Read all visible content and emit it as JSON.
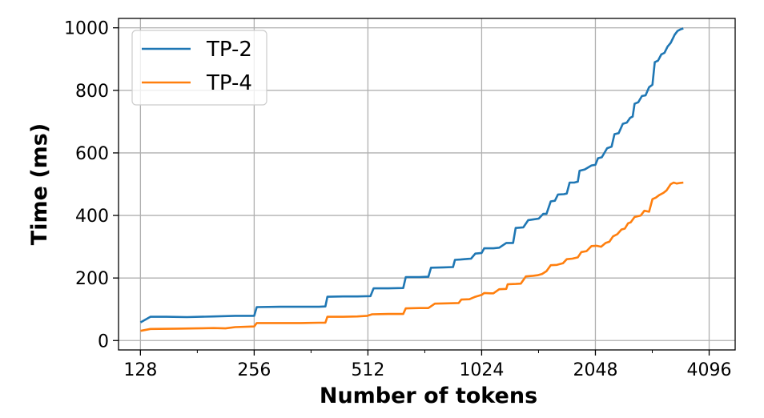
{
  "chart_data": {
    "type": "line",
    "title": "",
    "xlabel": "Number of tokens",
    "ylabel": "Time (ms)",
    "x_scale": "log2",
    "xlim": [
      112,
      4800
    ],
    "ylim": [
      -30,
      1030
    ],
    "x_ticks": [
      128,
      256,
      512,
      1024,
      2048,
      4096
    ],
    "x_tick_labels": [
      "128",
      "256",
      "512",
      "1024",
      "2048",
      "4096"
    ],
    "y_ticks": [
      0,
      200,
      400,
      600,
      800,
      1000
    ],
    "y_tick_labels": [
      "0",
      "200",
      "400",
      "600",
      "800",
      "1000"
    ],
    "grid": true,
    "legend_position": "top-left",
    "colors": {
      "TP-2": "#1f77b4",
      "TP-4": "#ff7f0e"
    },
    "series": [
      {
        "name": "TP-2",
        "color": "#1f77b4",
        "points": [
          [
            128,
            58
          ],
          [
            136,
            76
          ],
          [
            150,
            76
          ],
          [
            170,
            75
          ],
          [
            200,
            77
          ],
          [
            228,
            79
          ],
          [
            256,
            79
          ],
          [
            260,
            107
          ],
          [
            300,
            108
          ],
          [
            340,
            108
          ],
          [
            380,
            108
          ],
          [
            395,
            109
          ],
          [
            400,
            140
          ],
          [
            440,
            141
          ],
          [
            480,
            141
          ],
          [
            520,
            142
          ],
          [
            530,
            167
          ],
          [
            580,
            167
          ],
          [
            635,
            168
          ],
          [
            645,
            203
          ],
          [
            700,
            203
          ],
          [
            740,
            204
          ],
          [
            752,
            233
          ],
          [
            810,
            234
          ],
          [
            860,
            235
          ],
          [
            870,
            258
          ],
          [
            900,
            259
          ],
          [
            940,
            261
          ],
          [
            960,
            262
          ],
          [
            985,
            278
          ],
          [
            1024,
            280
          ],
          [
            1040,
            295
          ],
          [
            1100,
            295
          ],
          [
            1140,
            297
          ],
          [
            1190,
            312
          ],
          [
            1240,
            312
          ],
          [
            1260,
            360
          ],
          [
            1320,
            362
          ],
          [
            1360,
            385
          ],
          [
            1400,
            387
          ],
          [
            1450,
            390
          ],
          [
            1490,
            405
          ],
          [
            1520,
            405
          ],
          [
            1560,
            445
          ],
          [
            1600,
            447
          ],
          [
            1630,
            467
          ],
          [
            1690,
            468
          ],
          [
            1720,
            470
          ],
          [
            1750,
            505
          ],
          [
            1800,
            505
          ],
          [
            1840,
            508
          ],
          [
            1860,
            543
          ],
          [
            1920,
            547
          ],
          [
            2000,
            560
          ],
          [
            2048,
            562
          ],
          [
            2080,
            583
          ],
          [
            2130,
            586
          ],
          [
            2200,
            615
          ],
          [
            2260,
            620
          ],
          [
            2300,
            660
          ],
          [
            2360,
            663
          ],
          [
            2420,
            693
          ],
          [
            2480,
            697
          ],
          [
            2530,
            712
          ],
          [
            2570,
            716
          ],
          [
            2600,
            757
          ],
          [
            2660,
            762
          ],
          [
            2720,
            782
          ],
          [
            2780,
            784
          ],
          [
            2840,
            810
          ],
          [
            2900,
            818
          ],
          [
            2940,
            890
          ],
          [
            3000,
            895
          ],
          [
            3060,
            915
          ],
          [
            3120,
            920
          ],
          [
            3180,
            940
          ],
          [
            3240,
            952
          ],
          [
            3320,
            978
          ],
          [
            3380,
            990
          ],
          [
            3440,
            995
          ],
          [
            3500,
            998
          ]
        ]
      },
      {
        "name": "TP-4",
        "color": "#ff7f0e",
        "points": [
          [
            128,
            31
          ],
          [
            136,
            37
          ],
          [
            160,
            38
          ],
          [
            180,
            39
          ],
          [
            200,
            40
          ],
          [
            215,
            39
          ],
          [
            228,
            43
          ],
          [
            256,
            45
          ],
          [
            260,
            56
          ],
          [
            300,
            56
          ],
          [
            340,
            56
          ],
          [
            380,
            57
          ],
          [
            395,
            57
          ],
          [
            400,
            76
          ],
          [
            440,
            76
          ],
          [
            480,
            77
          ],
          [
            510,
            79
          ],
          [
            525,
            84
          ],
          [
            580,
            85
          ],
          [
            635,
            85
          ],
          [
            645,
            103
          ],
          [
            700,
            104
          ],
          [
            740,
            104
          ],
          [
            770,
            118
          ],
          [
            830,
            119
          ],
          [
            890,
            120
          ],
          [
            905,
            131
          ],
          [
            950,
            132
          ],
          [
            985,
            140
          ],
          [
            1024,
            146
          ],
          [
            1040,
            152
          ],
          [
            1080,
            151
          ],
          [
            1100,
            151
          ],
          [
            1140,
            164
          ],
          [
            1190,
            165
          ],
          [
            1200,
            180
          ],
          [
            1260,
            181
          ],
          [
            1300,
            182
          ],
          [
            1340,
            205
          ],
          [
            1400,
            207
          ],
          [
            1440,
            209
          ],
          [
            1480,
            213
          ],
          [
            1520,
            222
          ],
          [
            1560,
            241
          ],
          [
            1620,
            242
          ],
          [
            1680,
            247
          ],
          [
            1720,
            260
          ],
          [
            1780,
            262
          ],
          [
            1840,
            266
          ],
          [
            1880,
            283
          ],
          [
            1940,
            286
          ],
          [
            2000,
            302
          ],
          [
            2060,
            303
          ],
          [
            2120,
            300
          ],
          [
            2180,
            312
          ],
          [
            2230,
            316
          ],
          [
            2280,
            333
          ],
          [
            2340,
            340
          ],
          [
            2400,
            355
          ],
          [
            2450,
            358
          ],
          [
            2500,
            375
          ],
          [
            2540,
            378
          ],
          [
            2600,
            395
          ],
          [
            2700,
            400
          ],
          [
            2760,
            415
          ],
          [
            2840,
            412
          ],
          [
            2900,
            452
          ],
          [
            2960,
            457
          ],
          [
            3020,
            465
          ],
          [
            3100,
            472
          ],
          [
            3160,
            480
          ],
          [
            3240,
            500
          ],
          [
            3300,
            505
          ],
          [
            3360,
            502
          ],
          [
            3440,
            504
          ],
          [
            3500,
            505
          ]
        ]
      }
    ]
  }
}
